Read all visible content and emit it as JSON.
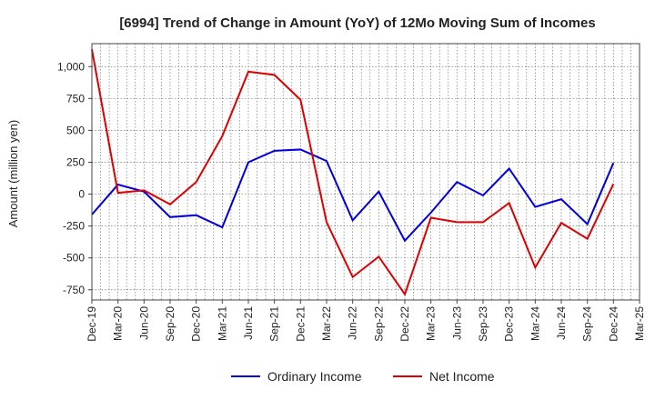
{
  "chart_data": {
    "type": "line",
    "title": "[6994]  Trend of Change in Amount (YoY) of 12Mo Moving Sum of Incomes",
    "xlabel": "",
    "ylabel": "Amount (million yen)",
    "categories": [
      "Dec-19",
      "Mar-20",
      "Jun-20",
      "Sep-20",
      "Dec-20",
      "Mar-21",
      "Jun-21",
      "Sep-21",
      "Dec-21",
      "Mar-22",
      "Jun-22",
      "Sep-22",
      "Dec-22",
      "Mar-23",
      "Jun-23",
      "Sep-23",
      "Dec-23",
      "Mar-24",
      "Jun-24",
      "Sep-24",
      "Dec-24",
      "Mar-25"
    ],
    "ylim": [
      -830,
      1180
    ],
    "yticks": [
      -750,
      -500,
      -250,
      0,
      250,
      500,
      750,
      1000
    ],
    "ytick_labels": [
      "-750",
      "-500",
      "-250",
      "0",
      "250",
      "500",
      "750",
      "1,000"
    ],
    "grid": true,
    "legend_position": "bottom",
    "series": [
      {
        "name": "Ordinary Income",
        "color": "#0000dd",
        "values": [
          -160,
          75,
          20,
          -180,
          -165,
          -260,
          250,
          340,
          350,
          260,
          -205,
          20,
          -365,
          -145,
          95,
          -10,
          200,
          -100,
          -40,
          -235,
          245,
          null
        ]
      },
      {
        "name": "Net Income",
        "color": "#dd0000",
        "values": [
          1135,
          10,
          30,
          -80,
          95,
          455,
          960,
          935,
          740,
          -220,
          -650,
          -490,
          -785,
          -185,
          -220,
          -220,
          -70,
          -575,
          -225,
          -350,
          80,
          null
        ]
      }
    ]
  }
}
